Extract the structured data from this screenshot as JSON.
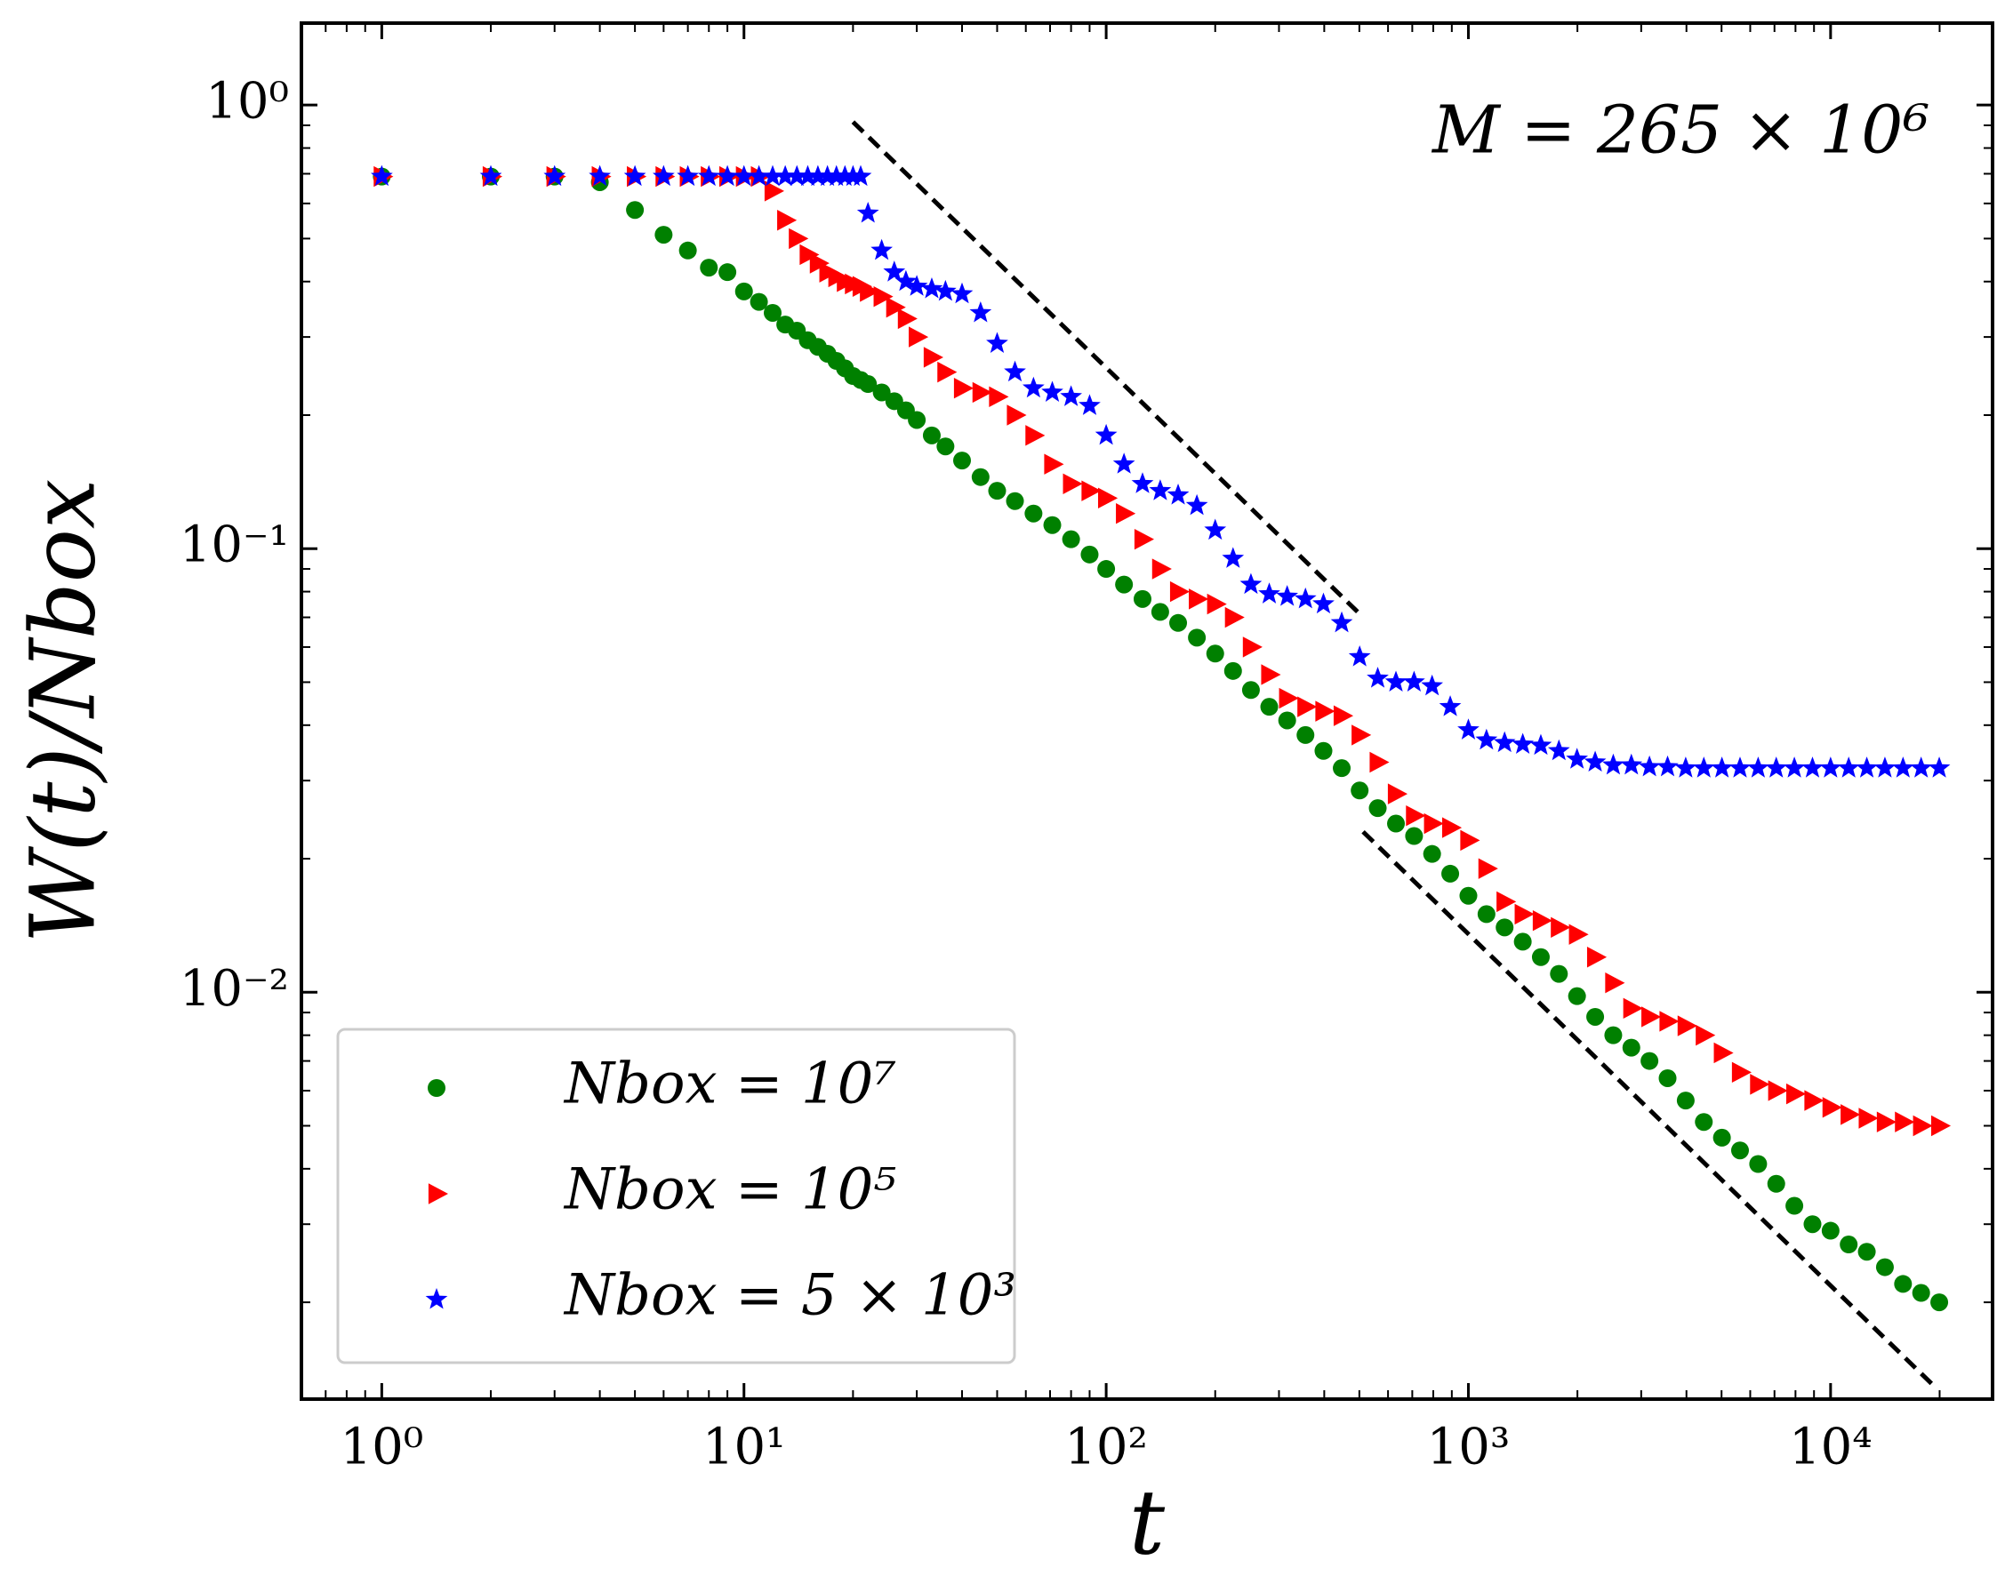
{
  "chart_data": {
    "type": "scatter",
    "xlabel": "t",
    "ylabel": "W(t)/Nbox",
    "annotation": "M = 265 × 10⁶",
    "log_x": true,
    "log_y": true,
    "legend": "lower left",
    "xlim": [
      0.6,
      28000
    ],
    "ylim": [
      0.00121,
      1.53
    ],
    "xticks": [
      {
        "value": 1,
        "label": "10⁰"
      },
      {
        "value": 10,
        "label": "10¹"
      },
      {
        "value": 100,
        "label": "10²"
      },
      {
        "value": 1000,
        "label": "10³"
      },
      {
        "value": 10000,
        "label": "10⁴"
      }
    ],
    "yticks": [
      {
        "value": 0.01,
        "label": "10⁻²"
      },
      {
        "value": 0.1,
        "label": "10⁻¹"
      },
      {
        "value": 1,
        "label": "10⁰"
      }
    ],
    "x": [
      1,
      2,
      3,
      4,
      5,
      6,
      7,
      8,
      9,
      10,
      11,
      12,
      13,
      14,
      15,
      16,
      17,
      18,
      19,
      20,
      21,
      22,
      24,
      26,
      28,
      30,
      33,
      36,
      40,
      45,
      50,
      56,
      63,
      71,
      80,
      90,
      100,
      112,
      126,
      141,
      158,
      178,
      200,
      224,
      251,
      282,
      316,
      355,
      398,
      447,
      501,
      562,
      631,
      708,
      794,
      891,
      1000,
      1122,
      1259,
      1413,
      1585,
      1778,
      1995,
      2239,
      2512,
      2818,
      3162,
      3548,
      3981,
      4467,
      5012,
      5623,
      6310,
      7079,
      7943,
      8913,
      10000,
      11220,
      12589,
      14125,
      15849,
      17783,
      19953
    ],
    "series": [
      {
        "name": "Nbox = 10⁷",
        "color": "#008000",
        "marker": "circle",
        "values": [
          0.69,
          0.69,
          0.69,
          0.67,
          0.58,
          0.51,
          0.47,
          0.43,
          0.42,
          0.38,
          0.36,
          0.34,
          0.32,
          0.31,
          0.295,
          0.285,
          0.275,
          0.265,
          0.255,
          0.245,
          0.24,
          0.235,
          0.225,
          0.215,
          0.205,
          0.195,
          0.18,
          0.17,
          0.158,
          0.145,
          0.135,
          0.128,
          0.12,
          0.113,
          0.105,
          0.097,
          0.09,
          0.083,
          0.077,
          0.072,
          0.068,
          0.063,
          0.058,
          0.053,
          0.048,
          0.044,
          0.041,
          0.038,
          0.035,
          0.032,
          0.0285,
          0.026,
          0.024,
          0.0225,
          0.0205,
          0.0185,
          0.0165,
          0.015,
          0.014,
          0.013,
          0.012,
          0.011,
          0.0098,
          0.0088,
          0.008,
          0.0075,
          0.007,
          0.0064,
          0.0057,
          0.0051,
          0.0047,
          0.0044,
          0.0041,
          0.0037,
          0.0033,
          0.003,
          0.0029,
          0.0027,
          0.0026,
          0.0024,
          0.0022,
          0.0021,
          0.002
        ]
      },
      {
        "name": "Nbox = 10⁵",
        "color": "#ff0000",
        "marker": "triangle-right",
        "values": [
          0.69,
          0.69,
          0.69,
          0.69,
          0.69,
          0.69,
          0.69,
          0.69,
          0.69,
          0.69,
          0.69,
          0.64,
          0.55,
          0.5,
          0.46,
          0.44,
          0.42,
          0.41,
          0.4,
          0.395,
          0.39,
          0.38,
          0.37,
          0.35,
          0.33,
          0.3,
          0.27,
          0.25,
          0.23,
          0.225,
          0.22,
          0.2,
          0.18,
          0.155,
          0.14,
          0.135,
          0.13,
          0.12,
          0.105,
          0.09,
          0.08,
          0.077,
          0.075,
          0.07,
          0.06,
          0.052,
          0.046,
          0.044,
          0.043,
          0.042,
          0.038,
          0.033,
          0.028,
          0.025,
          0.024,
          0.0235,
          0.022,
          0.019,
          0.016,
          0.015,
          0.0145,
          0.014,
          0.0135,
          0.012,
          0.0105,
          0.0092,
          0.0088,
          0.0086,
          0.0084,
          0.008,
          0.0073,
          0.0066,
          0.0062,
          0.006,
          0.0059,
          0.0057,
          0.0055,
          0.0053,
          0.0052,
          0.0051,
          0.0051,
          0.005,
          0.005
        ]
      },
      {
        "name": "Nbox = 5 × 10³",
        "color": "#0000ff",
        "marker": "star",
        "values": [
          0.69,
          0.69,
          0.69,
          0.69,
          0.69,
          0.69,
          0.69,
          0.69,
          0.69,
          0.69,
          0.69,
          0.69,
          0.69,
          0.69,
          0.69,
          0.69,
          0.69,
          0.69,
          0.69,
          0.69,
          0.69,
          0.57,
          0.47,
          0.42,
          0.4,
          0.39,
          0.385,
          0.38,
          0.375,
          0.34,
          0.29,
          0.25,
          0.23,
          0.225,
          0.22,
          0.21,
          0.18,
          0.155,
          0.14,
          0.135,
          0.132,
          0.125,
          0.11,
          0.095,
          0.083,
          0.079,
          0.078,
          0.077,
          0.075,
          0.068,
          0.057,
          0.051,
          0.05,
          0.05,
          0.049,
          0.044,
          0.039,
          0.037,
          0.0365,
          0.0362,
          0.036,
          0.035,
          0.0335,
          0.033,
          0.0325,
          0.0325,
          0.0322,
          0.0322,
          0.032,
          0.032,
          0.032,
          0.032,
          0.032,
          0.032,
          0.032,
          0.032,
          0.032,
          0.032,
          0.032,
          0.032,
          0.032,
          0.032,
          0.032
        ]
      }
    ],
    "reference_lines": [
      {
        "color": "#000000",
        "x": [
          20,
          500
        ],
        "y": [
          0.916,
          0.0714
        ]
      },
      {
        "color": "#000000",
        "x": [
          512,
          19400
        ],
        "y": [
          0.023,
          0.00129
        ]
      }
    ]
  }
}
